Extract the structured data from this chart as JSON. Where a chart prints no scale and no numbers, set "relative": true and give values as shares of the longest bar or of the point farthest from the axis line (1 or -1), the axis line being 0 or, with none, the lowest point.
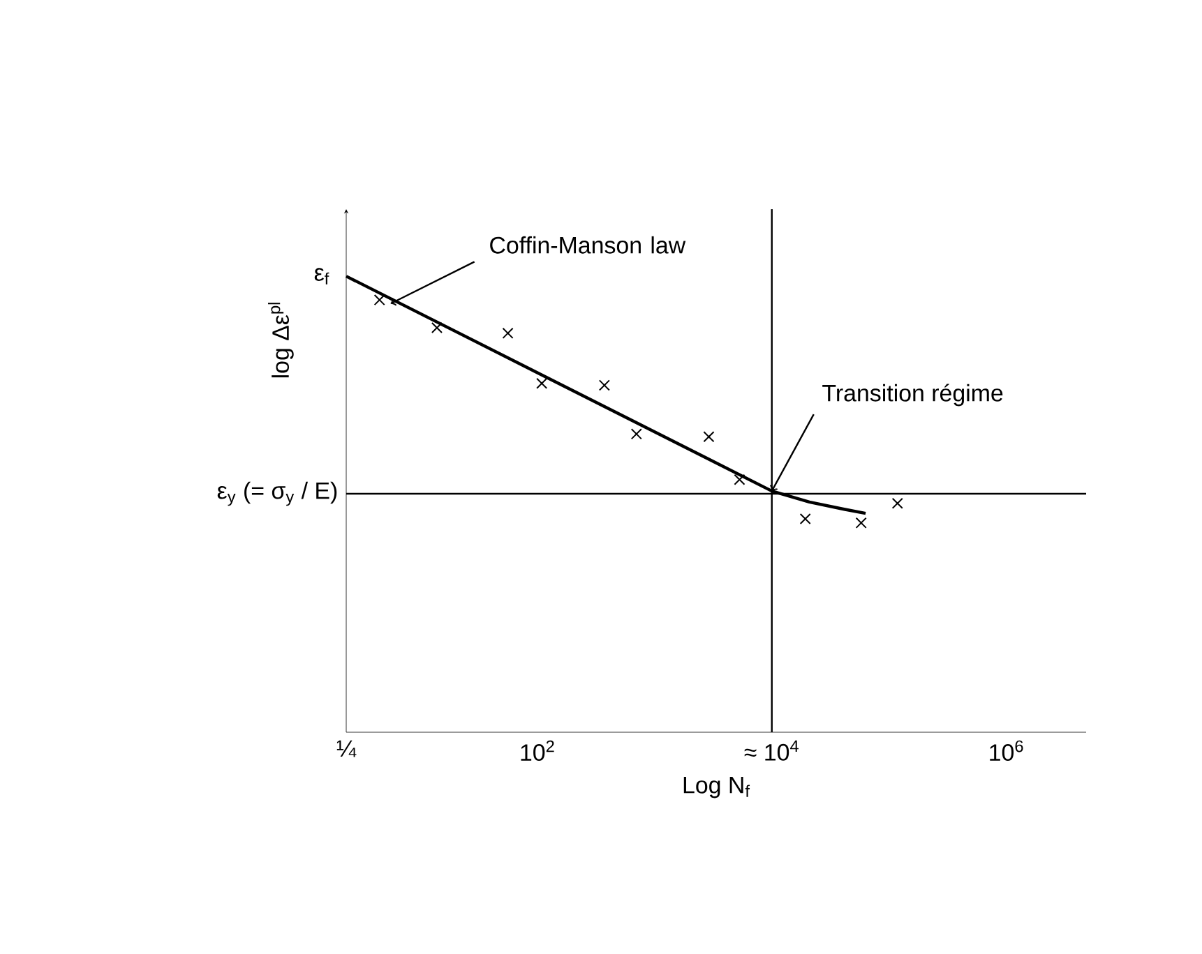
{
  "chart_data": {
    "type": "line",
    "relative": true,
    "xlabel": "Log N$_{f}$",
    "ylabel": "log Δε$^{pl}$",
    "log": "x",
    "xlim": [
      2.34,
      4800000
    ],
    "xticks": [
      {
        "value": 2.34,
        "label": "¼"
      },
      {
        "value": 100,
        "label": "10$^{2}$"
      },
      {
        "value": 10000,
        "label": "≈ 10$^{4}$"
      },
      {
        "value": 1000000,
        "label": "10$^{6}$"
      }
    ],
    "series": [
      {
        "marker": "none",
        "color": "#000000",
        "x": [
          2.34,
          10000,
          20900,
          41400,
          63100
        ],
        "values": [
          1.0,
          0.529,
          0.505,
          0.489,
          0.48
        ]
      },
      {
        "type": "scatter",
        "marker": "cross",
        "color": "#000000",
        "x": [
          4.5,
          13.9,
          56,
          109,
          373,
          700,
          2900,
          5300,
          19300,
          57800,
          118000
        ],
        "values": [
          0.948,
          0.887,
          0.875,
          0.765,
          0.761,
          0.654,
          0.648,
          0.554,
          0.468,
          0.459,
          0.502
        ]
      }
    ],
    "ref_lines": [
      {
        "axis": "x",
        "value": 10000
      },
      {
        "axis": "y",
        "value": 0.523,
        "label": "ε$_{y}$ (= σ$_{y}$ / E)"
      }
    ],
    "annotations": [
      {
        "text": "Coffin-Manson law",
        "x": 5.6,
        "y": 0.94
      },
      {
        "text": "Transition régime",
        "x": 10000,
        "y": 0.529
      },
      {
        "text": "ε$_{f}$",
        "x": 2.34,
        "y": 1.0
      }
    ]
  }
}
